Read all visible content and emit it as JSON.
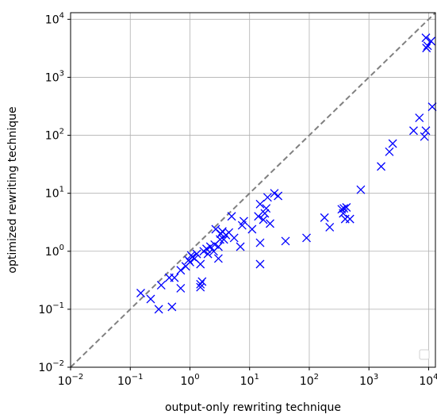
{
  "chart_data": {
    "type": "scatter",
    "xlabel": "output-only rewriting technique",
    "ylabel": "optimized rewriting technique",
    "xscale": "log",
    "yscale": "log",
    "xlim": [
      0.01,
      13000
    ],
    "ylim": [
      0.01,
      13000
    ],
    "grid": true,
    "legend": "bottom-right (empty)",
    "reference_line": {
      "style": "dashed",
      "color": "#808080",
      "from": [
        0.01,
        0.01
      ],
      "to": [
        13000,
        13000
      ]
    },
    "x_ticks": [
      {
        "base": "10",
        "exp": "−2"
      },
      {
        "base": "10",
        "exp": "−1"
      },
      {
        "base": "10",
        "exp": "0"
      },
      {
        "base": "10",
        "exp": "1"
      },
      {
        "base": "10",
        "exp": "2"
      },
      {
        "base": "10",
        "exp": "3"
      },
      {
        "base": "10",
        "exp": "4"
      }
    ],
    "y_ticks": [
      {
        "base": "10",
        "exp": "−2"
      },
      {
        "base": "10",
        "exp": "−1"
      },
      {
        "base": "10",
        "exp": "0"
      },
      {
        "base": "10",
        "exp": "1"
      },
      {
        "base": "10",
        "exp": "2"
      },
      {
        "base": "10",
        "exp": "3"
      },
      {
        "base": "10",
        "exp": "4"
      }
    ],
    "series": [
      {
        "marker": "x",
        "color": "#0000ff",
        "points": [
          [
            0.15,
            0.19
          ],
          [
            0.22,
            0.15
          ],
          [
            0.3,
            0.1
          ],
          [
            0.33,
            0.26
          ],
          [
            0.45,
            0.35
          ],
          [
            0.5,
            0.11
          ],
          [
            0.55,
            0.35
          ],
          [
            0.7,
            0.23
          ],
          [
            0.7,
            0.47
          ],
          [
            0.85,
            0.55
          ],
          [
            0.95,
            0.7
          ],
          [
            1.0,
            0.65
          ],
          [
            1.05,
            0.85
          ],
          [
            1.1,
            0.8
          ],
          [
            1.2,
            0.75
          ],
          [
            1.3,
            0.9
          ],
          [
            1.5,
            0.27
          ],
          [
            1.5,
            0.24
          ],
          [
            1.5,
            0.6
          ],
          [
            1.6,
            0.3
          ],
          [
            1.7,
            1.0
          ],
          [
            1.9,
            1.1
          ],
          [
            2.0,
            0.9
          ],
          [
            2.2,
            1.2
          ],
          [
            2.5,
            1.0
          ],
          [
            2.6,
            1.3
          ],
          [
            2.7,
            2.4
          ],
          [
            3.0,
            1.2
          ],
          [
            3.0,
            0.75
          ],
          [
            3.2,
            1.6
          ],
          [
            3.3,
            2.0
          ],
          [
            3.5,
            2.2
          ],
          [
            3.7,
            1.6
          ],
          [
            4.0,
            1.9
          ],
          [
            4.5,
            2.1
          ],
          [
            5.0,
            4.0
          ],
          [
            5.5,
            1.7
          ],
          [
            7.0,
            1.2
          ],
          [
            7.5,
            2.8
          ],
          [
            8.0,
            3.3
          ],
          [
            11.0,
            2.4
          ],
          [
            14.0,
            4.0
          ],
          [
            15.0,
            1.4
          ],
          [
            15.0,
            0.6
          ],
          [
            15.0,
            6.5
          ],
          [
            17.0,
            3.5
          ],
          [
            18.0,
            4.5
          ],
          [
            19.0,
            5.5
          ],
          [
            20.0,
            8.5
          ],
          [
            22.0,
            3.0
          ],
          [
            26.0,
            10.0
          ],
          [
            30.0,
            9.0
          ],
          [
            40.0,
            1.5
          ],
          [
            90.0,
            1.7
          ],
          [
            180.0,
            3.8
          ],
          [
            220.0,
            2.6
          ],
          [
            350.0,
            5.3
          ],
          [
            370.0,
            4.5
          ],
          [
            380.0,
            5.5
          ],
          [
            400.0,
            3.6
          ],
          [
            420.0,
            5.7
          ],
          [
            480.0,
            3.6
          ],
          [
            730.0,
            11.5
          ],
          [
            1600.0,
            29.0
          ],
          [
            2200.0,
            52.0
          ],
          [
            2500.0,
            72.0
          ],
          [
            5600.0,
            120.0
          ],
          [
            7000.0,
            200.0
          ],
          [
            8500.0,
            95.0
          ],
          [
            9000.0,
            120.0
          ],
          [
            11500.0,
            310.0
          ],
          [
            9000.0,
            4800.0
          ],
          [
            9200.0,
            3200.0
          ],
          [
            9600.0,
            3500.0
          ],
          [
            11000.0,
            4200.0
          ]
        ]
      }
    ]
  }
}
